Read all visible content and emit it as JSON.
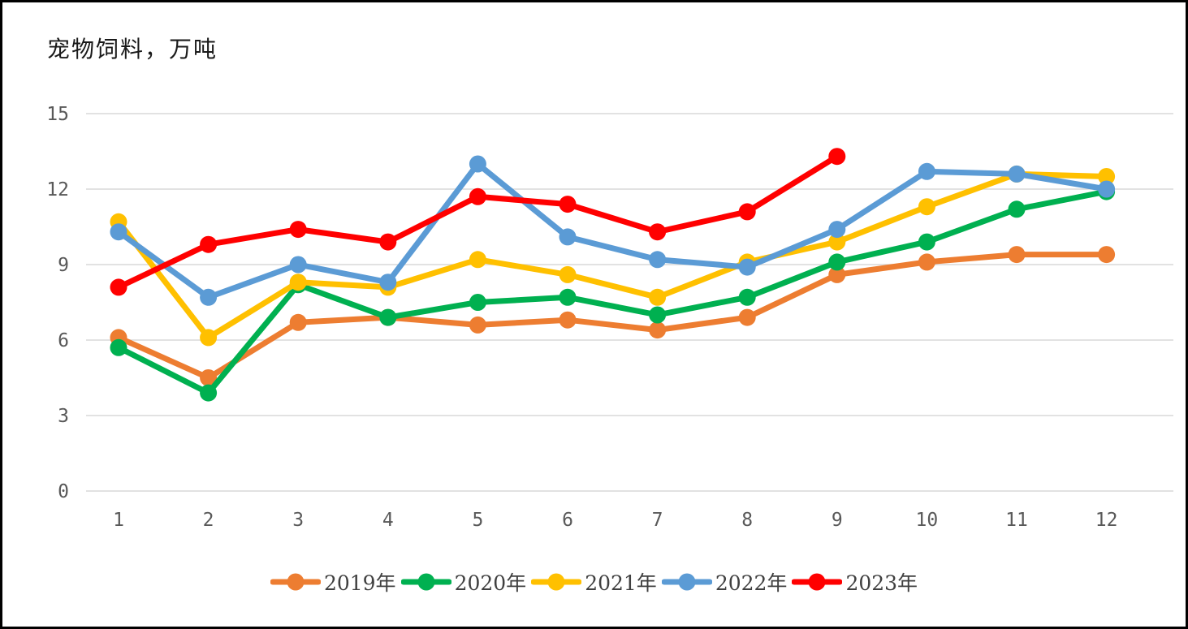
{
  "chart_data": {
    "type": "line",
    "title": "宠物饲料，万吨",
    "xlabel": "",
    "ylabel": "",
    "x_categories": [
      "1",
      "2",
      "3",
      "4",
      "5",
      "6",
      "7",
      "8",
      "9",
      "10",
      "11",
      "12"
    ],
    "y_ticks": [
      0,
      3,
      6,
      9,
      12,
      15
    ],
    "ylim": [
      0,
      15
    ],
    "grid": "horizontal-only",
    "legend_position": "bottom",
    "series": [
      {
        "name": "2019年",
        "color": "#ED7D31",
        "values": [
          6.1,
          4.5,
          6.7,
          6.9,
          6.6,
          6.8,
          6.4,
          6.9,
          8.6,
          9.1,
          9.4,
          9.4
        ]
      },
      {
        "name": "2020年",
        "color": "#00B050",
        "values": [
          5.7,
          3.9,
          8.2,
          6.9,
          7.5,
          7.7,
          7.0,
          7.7,
          9.1,
          9.9,
          11.2,
          11.9
        ]
      },
      {
        "name": "2021年",
        "color": "#FFC000",
        "values": [
          10.7,
          6.1,
          8.3,
          8.1,
          9.2,
          8.6,
          7.7,
          9.1,
          9.9,
          11.3,
          12.6,
          12.5
        ]
      },
      {
        "name": "2022年",
        "color": "#5B9BD5",
        "values": [
          10.3,
          7.7,
          9.0,
          8.3,
          13.0,
          10.1,
          9.2,
          8.9,
          10.4,
          12.7,
          12.6,
          12.0
        ]
      },
      {
        "name": "2023年",
        "color": "#FF0000",
        "values": [
          8.1,
          9.8,
          10.4,
          9.9,
          11.7,
          11.4,
          10.3,
          11.1,
          13.3,
          null,
          null,
          null
        ]
      }
    ]
  },
  "style": {
    "grid_color": "#D9D9D9",
    "axis_text_color": "#595959",
    "title_color": "#1a1a1a",
    "legend_text_color": "#404040",
    "frame_border_color": "#000000"
  }
}
